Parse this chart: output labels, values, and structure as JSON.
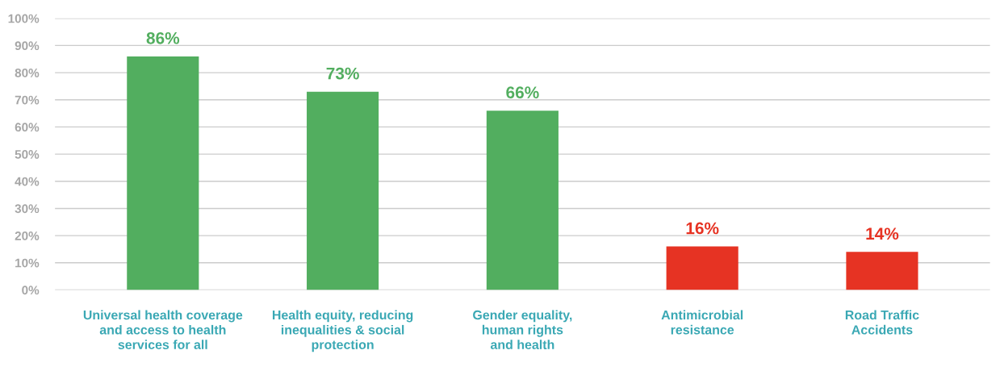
{
  "chart_data": {
    "type": "bar",
    "categories": [
      "Universal health coverage\nand access to health\nservices for all",
      "Health equity, reducing\ninequalities & social\nprotection",
      "Gender equality,\nhuman rights\nand health",
      "Antimicrobial\nresistance",
      "Road Traffic\nAccidents"
    ],
    "values": [
      86,
      73,
      66,
      16,
      14
    ],
    "colors": [
      "#52ae5f",
      "#52ae5f",
      "#52ae5f",
      "#e63323",
      "#e63323"
    ],
    "value_labels": [
      "86%",
      "73%",
      "66%",
      "16%",
      "14%"
    ],
    "ylim": [
      0,
      100
    ],
    "yticks": [
      {
        "value": 0,
        "label": "0%"
      },
      {
        "value": 10,
        "label": "10%"
      },
      {
        "value": 20,
        "label": "20%"
      },
      {
        "value": 30,
        "label": "30%"
      },
      {
        "value": 40,
        "label": "40%"
      },
      {
        "value": 50,
        "label": "50%"
      },
      {
        "value": 60,
        "label": "60%"
      },
      {
        "value": 70,
        "label": "70%"
      },
      {
        "value": 80,
        "label": "80%"
      },
      {
        "value": 90,
        "label": "90%"
      },
      {
        "value": 100,
        "label": "100%"
      }
    ],
    "grid": "y",
    "legend": false
  }
}
